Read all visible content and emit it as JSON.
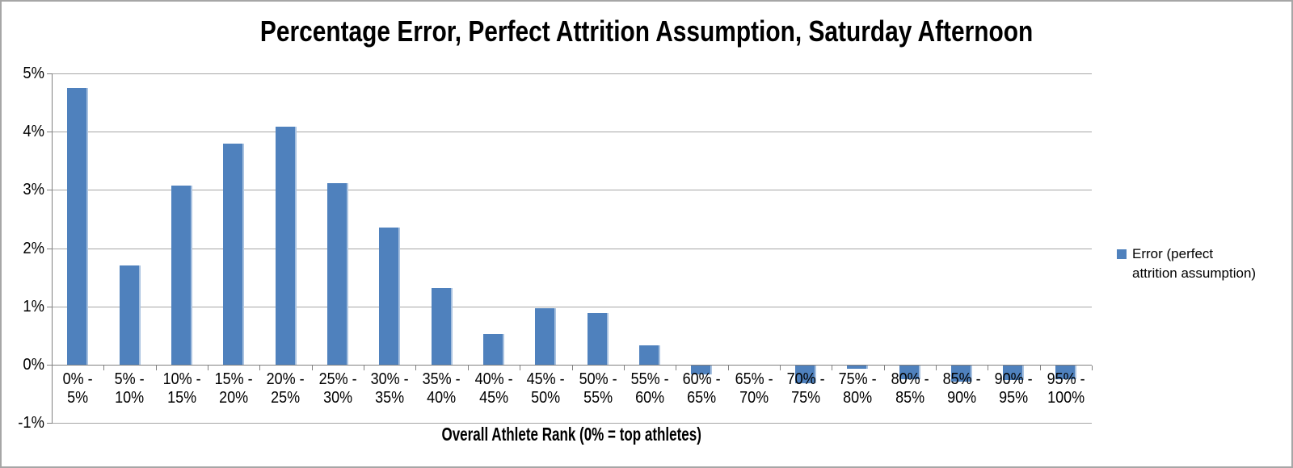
{
  "chart_data": {
    "type": "bar",
    "title": "Percentage Error, Perfect Attrition Assumption, Saturday Afternoon",
    "xlabel": "Overall Athlete Rank (0% = top athletes)",
    "ylabel": "",
    "categories": [
      [
        "0% -",
        "5%"
      ],
      [
        "5% -",
        "10%"
      ],
      [
        "10% -",
        "15%"
      ],
      [
        "15% -",
        "20%"
      ],
      [
        "20% -",
        "25%"
      ],
      [
        "25% -",
        "30%"
      ],
      [
        "30% -",
        "35%"
      ],
      [
        "35% -",
        "40%"
      ],
      [
        "40% -",
        "45%"
      ],
      [
        "45% -",
        "50%"
      ],
      [
        "50% -",
        "55%"
      ],
      [
        "55% -",
        "60%"
      ],
      [
        "60% -",
        "65%"
      ],
      [
        "65% -",
        "70%"
      ],
      [
        "70% -",
        "75%"
      ],
      [
        "75% -",
        "80%"
      ],
      [
        "80% -",
        "85%"
      ],
      [
        "85% -",
        "90%"
      ],
      [
        "90% -",
        "95%"
      ],
      [
        "95% -",
        "100%"
      ]
    ],
    "series": [
      {
        "name": "Error (perfect attrition assumption)",
        "values": [
          4.75,
          1.7,
          3.07,
          3.79,
          4.09,
          3.11,
          2.35,
          1.31,
          0.52,
          0.97,
          0.88,
          0.33,
          -0.17,
          0.0,
          -0.32,
          -0.07,
          -0.25,
          -0.3,
          -0.27,
          -0.25
        ]
      }
    ],
    "legend": {
      "position": "right",
      "lines": [
        "Error (perfect",
        "attrition assumption)"
      ]
    },
    "yticks": [
      {
        "label": "5%",
        "value": 5
      },
      {
        "label": "4%",
        "value": 4
      },
      {
        "label": "3%",
        "value": 3
      },
      {
        "label": "2%",
        "value": 2
      },
      {
        "label": "1%",
        "value": 1
      },
      {
        "label": "0%",
        "value": 0
      },
      {
        "label": "-1%",
        "value": -1
      }
    ],
    "ylim": [
      -1,
      5
    ],
    "grid": true,
    "colors": {
      "bar": "#4F81BD",
      "bar_edge": "#A9C2E0",
      "gridline": "#A6A6A6",
      "axis": "#808080",
      "text": "#000000",
      "chart_border": "#A6A6A6",
      "background": "#FFFFFF"
    }
  }
}
